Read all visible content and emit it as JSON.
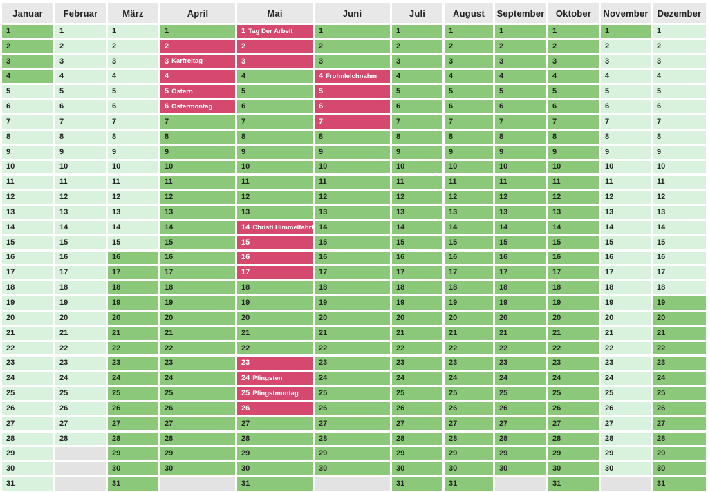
{
  "colors": {
    "school_vacation_green": "#8bc87a",
    "regular_day_green": "#d9f2dd",
    "holiday_pink": "#d5496f",
    "nonexistent_day_gray": "#e3e3e3",
    "header_gray": "#e8e8e8",
    "text_dark": "#232323",
    "holiday_text": "#ffffff"
  },
  "months": [
    {
      "name": "Januar",
      "days_in_month": 31,
      "dark_ranges": [
        [
          1,
          4
        ]
      ],
      "holidays": []
    },
    {
      "name": "Februar",
      "days_in_month": 28,
      "dark_ranges": [],
      "holidays": []
    },
    {
      "name": "März",
      "days_in_month": 31,
      "dark_ranges": [
        [
          16,
          31
        ]
      ],
      "holidays": []
    },
    {
      "name": "April",
      "days_in_month": 30,
      "dark_ranges": [
        [
          1,
          1
        ],
        [
          7,
          30
        ]
      ],
      "holidays": [
        {
          "day": 2
        },
        {
          "day": 3,
          "label": "Karfreitag"
        },
        {
          "day": 4
        },
        {
          "day": 5,
          "label": "Ostern"
        },
        {
          "day": 6,
          "label": "Ostermontag"
        }
      ]
    },
    {
      "name": "Mai",
      "days_in_month": 31,
      "dark_ranges": [
        [
          4,
          13
        ],
        [
          18,
          22
        ],
        [
          27,
          31
        ]
      ],
      "holidays": [
        {
          "day": 1,
          "label": "Tag Der Arbeit"
        },
        {
          "day": 2
        },
        {
          "day": 3
        },
        {
          "day": 14,
          "label": "Christi Himmelfahrt"
        },
        {
          "day": 15
        },
        {
          "day": 16
        },
        {
          "day": 17
        },
        {
          "day": 23
        },
        {
          "day": 24,
          "label": "Pfingsten"
        },
        {
          "day": 25,
          "label": "Pfingstmontag"
        },
        {
          "day": 26
        }
      ]
    },
    {
      "name": "Juni",
      "days_in_month": 30,
      "dark_ranges": [
        [
          1,
          3
        ],
        [
          8,
          30
        ]
      ],
      "holidays": [
        {
          "day": 4,
          "label": "Frohnleichnahm"
        },
        {
          "day": 5
        },
        {
          "day": 6
        },
        {
          "day": 7
        }
      ]
    },
    {
      "name": "Juli",
      "days_in_month": 31,
      "dark_ranges": [
        [
          1,
          31
        ]
      ],
      "holidays": []
    },
    {
      "name": "August",
      "days_in_month": 31,
      "dark_ranges": [
        [
          1,
          31
        ]
      ],
      "holidays": []
    },
    {
      "name": "September",
      "days_in_month": 30,
      "dark_ranges": [
        [
          1,
          30
        ]
      ],
      "holidays": []
    },
    {
      "name": "Oktober",
      "days_in_month": 31,
      "dark_ranges": [
        [
          1,
          31
        ]
      ],
      "holidays": []
    },
    {
      "name": "November",
      "days_in_month": 30,
      "dark_ranges": [
        [
          1,
          1
        ]
      ],
      "holidays": []
    },
    {
      "name": "Dezember",
      "days_in_month": 31,
      "dark_ranges": [
        [
          19,
          31
        ]
      ],
      "holidays": []
    }
  ],
  "grid_rows": 31
}
